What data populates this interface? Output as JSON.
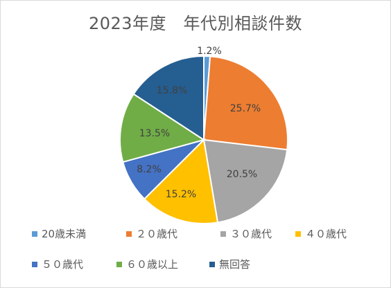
{
  "title": "2023年度　年代別相談件数",
  "chart_data": {
    "type": "pie",
    "title": "2023年度　年代別相談件数",
    "categories": [
      "20歳未満",
      "２０歳代",
      "３０歳代",
      "４０歳代",
      "５０歳代",
      "６０歳以上",
      "無回答"
    ],
    "values": [
      1.2,
      25.7,
      20.5,
      15.2,
      8.2,
      13.5,
      15.8
    ],
    "labels": [
      "1.2%",
      "25.7%",
      "20.5%",
      "15.2%",
      "8.2%",
      "13.5%",
      "15.8%"
    ],
    "colors": [
      "#5b9bd5",
      "#ed7d31",
      "#a5a5a5",
      "#ffc000",
      "#4472c4",
      "#70ad47",
      "#255e91"
    ],
    "legend": "bottom"
  }
}
